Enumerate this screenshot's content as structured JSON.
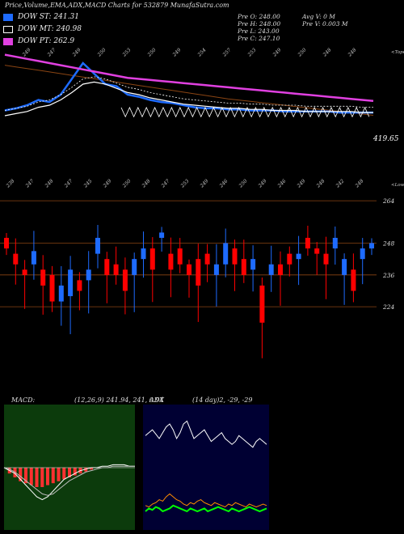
{
  "header": {
    "title": "Price,Volume,EMA,ADX,MACD Charts for 532879 MunafaSutra.com"
  },
  "legend": [
    {
      "label": "DOW ST: 241.31",
      "color": "#1e6bff"
    },
    {
      "label": "DOW MT: 240.98",
      "color": "#ffffff"
    },
    {
      "label": "DOW PT: 262.9",
      "color": "#e040e0"
    }
  ],
  "info_left": [
    "Pre   O: 248.00",
    "Pre   H: 248.00",
    "Pre   L: 243.00",
    "Pre   C: 247.10"
  ],
  "info_right": [
    "Avg V: 0   M",
    "Pre   V: 0.003 M"
  ],
  "colors": {
    "up": "#1e6bff",
    "down": "#ff0000",
    "ema_short": "#1e6bff",
    "ema_mid": "#ffffff",
    "ema_long": "#e040e0",
    "ema_brown": "#8b4513",
    "hline": "#8b4513",
    "macd_bg": "#0c3b0c",
    "adx_bg": "#000033",
    "macd_hist": "#ff3030"
  },
  "chart_data": [
    {
      "type": "line",
      "name": "price-ema-panel",
      "right_label": "419.65",
      "top_right_tag": "<Tope",
      "top_tick_labels": [
        "249",
        "247",
        "249",
        "250",
        "253",
        "250",
        "249",
        "254",
        "257",
        "253",
        "249",
        "250",
        "248",
        "248"
      ],
      "series": [
        {
          "name": "DOW ST",
          "values": [
            45,
            47,
            50,
            55,
            53,
            60,
            75,
            90,
            80,
            70,
            68,
            60,
            58,
            55,
            53,
            52,
            50,
            48,
            47,
            47,
            46,
            46,
            45,
            45,
            45,
            44,
            44,
            44,
            44,
            44,
            43,
            43,
            43,
            43
          ]
        },
        {
          "name": "DOW MT",
          "values": [
            40,
            42,
            44,
            48,
            50,
            55,
            62,
            70,
            72,
            70,
            66,
            62,
            60,
            57,
            55,
            53,
            51,
            50,
            49,
            48,
            47,
            47,
            46,
            46,
            45,
            45,
            45,
            44,
            44,
            44,
            44,
            44,
            43,
            43
          ]
        },
        {
          "name": "DOW PT",
          "values": [
            98,
            96,
            94,
            92,
            90,
            88,
            86,
            84,
            82,
            80,
            78,
            76,
            75,
            74,
            73,
            72,
            71,
            70,
            69,
            68,
            67,
            66,
            65,
            64,
            63,
            62,
            61,
            60,
            59,
            58,
            57,
            56,
            55,
            54
          ]
        }
      ]
    },
    {
      "type": "bar",
      "name": "volume-candle-panel",
      "right_tag": "<Lower",
      "right_ticks": [
        "264",
        "248",
        "236",
        "224"
      ],
      "top_tick_labels": [
        "238",
        "247",
        "248",
        "247",
        "245",
        "249",
        "250",
        "248",
        "247",
        "253",
        "249",
        "246",
        "250",
        "249",
        "246",
        "249",
        "248",
        "242",
        "248"
      ],
      "candles_open_close": [
        [
          250,
          246
        ],
        [
          244,
          240
        ],
        [
          238,
          236
        ],
        [
          240,
          245
        ],
        [
          238,
          232
        ],
        [
          236,
          226
        ],
        [
          226,
          232
        ],
        [
          228,
          238
        ],
        [
          234,
          230
        ],
        [
          234,
          238
        ],
        [
          244,
          250
        ],
        [
          242,
          236
        ],
        [
          240,
          236
        ],
        [
          238,
          230
        ],
        [
          236,
          242
        ],
        [
          242,
          246
        ],
        [
          246,
          238
        ],
        [
          250,
          252
        ],
        [
          244,
          238
        ],
        [
          246,
          240
        ],
        [
          240,
          236
        ],
        [
          242,
          232
        ],
        [
          244,
          240
        ],
        [
          236,
          240
        ],
        [
          240,
          248
        ],
        [
          246,
          240
        ],
        [
          242,
          236
        ],
        [
          238,
          242
        ],
        [
          232,
          218
        ],
        [
          236,
          240
        ],
        [
          240,
          236
        ],
        [
          244,
          240
        ],
        [
          242,
          244
        ],
        [
          250,
          246
        ],
        [
          246,
          244
        ],
        [
          244,
          240
        ],
        [
          246,
          250
        ],
        [
          236,
          242
        ],
        [
          238,
          230
        ],
        [
          242,
          246
        ],
        [
          246,
          248
        ]
      ]
    },
    {
      "type": "line",
      "name": "macd-panel",
      "label": "MACD:",
      "values_text": "(12,26,9) 241.94, 241, 0.94",
      "series": [
        {
          "name": "macd",
          "values": [
            0,
            -2,
            -4,
            -8,
            -12,
            -16,
            -20,
            -22,
            -20,
            -16,
            -12,
            -8,
            -6,
            -4,
            -2,
            -1,
            0,
            0,
            1,
            1,
            2,
            2,
            2,
            1,
            1
          ]
        },
        {
          "name": "signal",
          "values": [
            0,
            -1,
            -3,
            -6,
            -9,
            -12,
            -15,
            -18,
            -19,
            -18,
            -15,
            -12,
            -9,
            -7,
            -5,
            -3,
            -2,
            -1,
            0,
            0,
            1,
            1,
            1,
            1,
            1
          ]
        },
        {
          "name": "hist",
          "values": [
            0,
            -3,
            -5,
            -7,
            -8,
            -9,
            -10,
            -10,
            -9,
            -8,
            -7,
            -6,
            -5,
            -4,
            -3,
            -2,
            -1,
            0,
            0,
            1,
            1,
            1,
            1,
            0,
            0
          ]
        }
      ]
    },
    {
      "type": "line",
      "name": "adx-panel",
      "label": "ADX",
      "values_text": "(14   day)2,  -29,  -29",
      "series": [
        {
          "name": "adx",
          "values": [
            62,
            64,
            66,
            63,
            60,
            64,
            68,
            70,
            66,
            60,
            64,
            70,
            72,
            66,
            60,
            62,
            64,
            66,
            62,
            58,
            60,
            62,
            64,
            60,
            58,
            56,
            58,
            62,
            60,
            58,
            56,
            54,
            58,
            60,
            58,
            56
          ]
        },
        {
          "name": "plus",
          "values": [
            10,
            12,
            11,
            13,
            12,
            10,
            11,
            12,
            14,
            13,
            12,
            11,
            10,
            12,
            11,
            10,
            11,
            12,
            10,
            11,
            12,
            13,
            12,
            11,
            10,
            12,
            11,
            10,
            11,
            12,
            13,
            12,
            11,
            10,
            11,
            12
          ]
        },
        {
          "name": "minus",
          "values": [
            14,
            13,
            15,
            16,
            18,
            17,
            20,
            22,
            20,
            18,
            17,
            15,
            14,
            16,
            15,
            17,
            18,
            16,
            15,
            14,
            16,
            15,
            14,
            13,
            15,
            14,
            16,
            15,
            14,
            13,
            15,
            14,
            13,
            14,
            15,
            14
          ]
        }
      ]
    }
  ]
}
